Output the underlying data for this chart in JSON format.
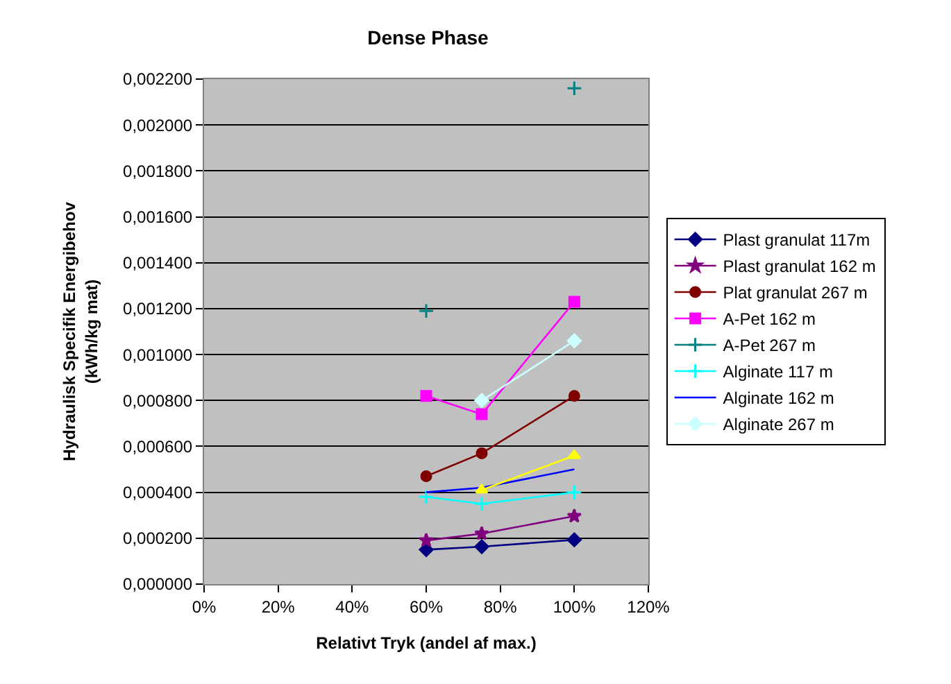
{
  "chart_data": {
    "type": "line",
    "title": "Dense Phase",
    "xlabel": "Relativt Tryk (andel af max.)",
    "ylabel": "Hydraulisk Specifik Energibehov\n(kWh/kg mat)",
    "x": [
      60,
      75,
      100
    ],
    "series": [
      {
        "name": "Plast granulat 117m",
        "color": "#000080",
        "marker": "diamond",
        "values": [
          0.00015,
          0.000163,
          0.000193
        ]
      },
      {
        "name": "Plast granulat 162 m",
        "color": "#800080",
        "marker": "star",
        "values": [
          0.00019,
          0.00022,
          0.000296
        ]
      },
      {
        "name": "Plat granulat 267 m",
        "color": "#800000",
        "marker": "circle",
        "values": [
          0.00047,
          0.00057,
          0.00082
        ]
      },
      {
        "name": "A-Pet 162 m",
        "color": "#ff00ff",
        "marker": "square",
        "values": [
          0.00082,
          0.00074,
          0.00123
        ]
      },
      {
        "name": "A-Pet 267 m",
        "color": "#008080",
        "marker": "cross",
        "values": [
          0.00119,
          null,
          0.00216
        ]
      },
      {
        "name": "Alginate 117 m",
        "color": "#00ffff",
        "marker": "cross",
        "values": [
          0.00038,
          0.00035,
          0.0004
        ]
      },
      {
        "name": "Alginate 162 m",
        "color": "#0000ff",
        "marker": "none",
        "values": [
          0.0004,
          0.00042,
          0.0005
        ]
      },
      {
        "name": "Alginate 267 m",
        "color": "#ccffff",
        "marker": "diamond",
        "values": [
          null,
          0.0008,
          0.00106
        ]
      },
      {
        "color": "#ffff00",
        "marker": "triangle",
        "values": [
          null,
          0.00041,
          0.00056
        ]
      }
    ],
    "xlim": [
      0,
      120
    ],
    "xticks": [
      {
        "value": 0,
        "label": "0%"
      },
      {
        "value": 20,
        "label": "20%"
      },
      {
        "value": 40,
        "label": "40%"
      },
      {
        "value": 60,
        "label": "60%"
      },
      {
        "value": 80,
        "label": "80%"
      },
      {
        "value": 100,
        "label": "100%"
      },
      {
        "value": 120,
        "label": "120%"
      }
    ],
    "ylim": [
      0,
      0.0022
    ],
    "yticks": [
      {
        "value": 0,
        "label": "0,000000"
      },
      {
        "value": 0.0002,
        "label": "0,000200"
      },
      {
        "value": 0.0004,
        "label": "0,000400"
      },
      {
        "value": 0.0006,
        "label": "0,000600"
      },
      {
        "value": 0.0008,
        "label": "0,000800"
      },
      {
        "value": 0.001,
        "label": "0,001000"
      },
      {
        "value": 0.0012,
        "label": "0,001200"
      },
      {
        "value": 0.0014,
        "label": "0,001400"
      },
      {
        "value": 0.0016,
        "label": "0,001600"
      },
      {
        "value": 0.0018,
        "label": "0,001800"
      },
      {
        "value": 0.002,
        "label": "0,002000"
      },
      {
        "value": 0.0022,
        "label": "0,002200"
      }
    ],
    "grid": "y",
    "legend": "right"
  }
}
